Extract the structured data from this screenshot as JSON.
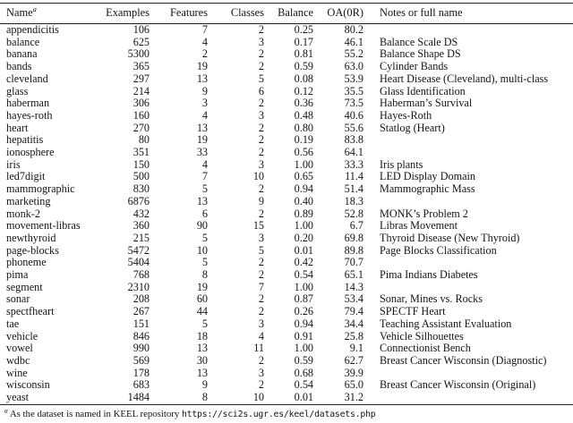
{
  "table": {
    "headers": {
      "name": "Name",
      "name_marker": "a",
      "examples": "Examples",
      "features": "Features",
      "classes": "Classes",
      "balance": "Balance",
      "oa": "OA(0R)",
      "notes": "Notes or full name"
    },
    "rows": [
      {
        "name": "appendicitis",
        "examples": "106",
        "features": "7",
        "classes": "2",
        "balance": "0.25",
        "oa": "80.2",
        "notes": ""
      },
      {
        "name": "balance",
        "examples": "625",
        "features": "4",
        "classes": "3",
        "balance": "0.17",
        "oa": "46.1",
        "notes": "Balance Scale DS"
      },
      {
        "name": "banana",
        "examples": "5300",
        "features": "2",
        "classes": "2",
        "balance": "0.81",
        "oa": "55.2",
        "notes": "Balance Shape DS"
      },
      {
        "name": "bands",
        "examples": "365",
        "features": "19",
        "classes": "2",
        "balance": "0.59",
        "oa": "63.0",
        "notes": "Cylinder Bands"
      },
      {
        "name": "cleveland",
        "examples": "297",
        "features": "13",
        "classes": "5",
        "balance": "0.08",
        "oa": "53.9",
        "notes": "Heart Disease (Cleveland), multi-class"
      },
      {
        "name": "glass",
        "examples": "214",
        "features": "9",
        "classes": "6",
        "balance": "0.12",
        "oa": "35.5",
        "notes": "Glass Identification"
      },
      {
        "name": "haberman",
        "examples": "306",
        "features": "3",
        "classes": "2",
        "balance": "0.36",
        "oa": "73.5",
        "notes": "Haberman’s Survival"
      },
      {
        "name": "hayes-roth",
        "examples": "160",
        "features": "4",
        "classes": "3",
        "balance": "0.48",
        "oa": "40.6",
        "notes": "Hayes-Roth"
      },
      {
        "name": "heart",
        "examples": "270",
        "features": "13",
        "classes": "2",
        "balance": "0.80",
        "oa": "55.6",
        "notes": "Statlog (Heart)"
      },
      {
        "name": "hepatitis",
        "examples": "80",
        "features": "19",
        "classes": "2",
        "balance": "0.19",
        "oa": "83.8",
        "notes": ""
      },
      {
        "name": "ionosphere",
        "examples": "351",
        "features": "33",
        "classes": "2",
        "balance": "0.56",
        "oa": "64.1",
        "notes": ""
      },
      {
        "name": "iris",
        "examples": "150",
        "features": "4",
        "classes": "3",
        "balance": "1.00",
        "oa": "33.3",
        "notes": "Iris plants"
      },
      {
        "name": "led7digit",
        "examples": "500",
        "features": "7",
        "classes": "10",
        "balance": "0.65",
        "oa": "11.4",
        "notes": "LED Display Domain"
      },
      {
        "name": "mammographic",
        "examples": "830",
        "features": "5",
        "classes": "2",
        "balance": "0.94",
        "oa": "51.4",
        "notes": "Mammographic Mass"
      },
      {
        "name": "marketing",
        "examples": "6876",
        "features": "13",
        "classes": "9",
        "balance": "0.40",
        "oa": "18.3",
        "notes": ""
      },
      {
        "name": "monk-2",
        "examples": "432",
        "features": "6",
        "classes": "2",
        "balance": "0.89",
        "oa": "52.8",
        "notes": "MONK’s Problem 2"
      },
      {
        "name": "movement-libras",
        "examples": "360",
        "features": "90",
        "classes": "15",
        "balance": "1.00",
        "oa": "6.7",
        "notes": "Libras Movement"
      },
      {
        "name": "newthyroid",
        "examples": "215",
        "features": "5",
        "classes": "3",
        "balance": "0.20",
        "oa": "69.8",
        "notes": "Thyroid Disease (New Thyroid)"
      },
      {
        "name": "page-blocks",
        "examples": "5472",
        "features": "10",
        "classes": "5",
        "balance": "0.01",
        "oa": "89.8",
        "notes": "Page Blocks Classification"
      },
      {
        "name": "phoneme",
        "examples": "5404",
        "features": "5",
        "classes": "2",
        "balance": "0.42",
        "oa": "70.7",
        "notes": ""
      },
      {
        "name": "pima",
        "examples": "768",
        "features": "8",
        "classes": "2",
        "balance": "0.54",
        "oa": "65.1",
        "notes": "Pima Indians Diabetes"
      },
      {
        "name": "segment",
        "examples": "2310",
        "features": "19",
        "classes": "7",
        "balance": "1.00",
        "oa": "14.3",
        "notes": ""
      },
      {
        "name": "sonar",
        "examples": "208",
        "features": "60",
        "classes": "2",
        "balance": "0.87",
        "oa": "53.4",
        "notes": "Sonar, Mines vs. Rocks"
      },
      {
        "name": "spectfheart",
        "examples": "267",
        "features": "44",
        "classes": "2",
        "balance": "0.26",
        "oa": "79.4",
        "notes": "SPECTF Heart"
      },
      {
        "name": "tae",
        "examples": "151",
        "features": "5",
        "classes": "3",
        "balance": "0.94",
        "oa": "34.4",
        "notes": "Teaching Assistant Evaluation"
      },
      {
        "name": "vehicle",
        "examples": "846",
        "features": "18",
        "classes": "4",
        "balance": "0.91",
        "oa": "25.8",
        "notes": "Vehicle Silhouettes"
      },
      {
        "name": "vowel",
        "examples": "990",
        "features": "13",
        "classes": "11",
        "balance": "1.00",
        "oa": "9.1",
        "notes": "Connectionist Bench"
      },
      {
        "name": "wdbc",
        "examples": "569",
        "features": "30",
        "classes": "2",
        "balance": "0.59",
        "oa": "62.7",
        "notes": "Breast Cancer Wisconsin (Diagnostic)"
      },
      {
        "name": "wine",
        "examples": "178",
        "features": "13",
        "classes": "3",
        "balance": "0.68",
        "oa": "39.9",
        "notes": ""
      },
      {
        "name": "wisconsin",
        "examples": "683",
        "features": "9",
        "classes": "2",
        "balance": "0.54",
        "oa": "65.0",
        "notes": "Breast Cancer Wisconsin (Original)"
      },
      {
        "name": "yeast",
        "examples": "1484",
        "features": "8",
        "classes": "10",
        "balance": "0.01",
        "oa": "31.2",
        "notes": ""
      }
    ]
  },
  "footnote": {
    "marker": "a",
    "text": " As the dataset is named in KEEL repository ",
    "url": "https://sci2s.ugr.es/keel/datasets.php"
  }
}
